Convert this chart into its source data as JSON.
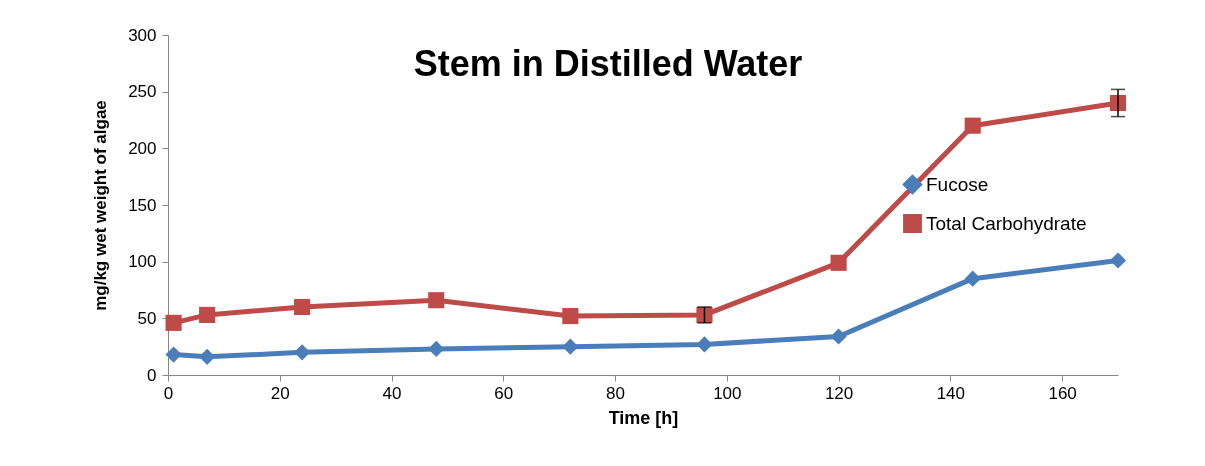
{
  "chart_data": {
    "type": "line",
    "title": "Stem in Distilled Water",
    "xlabel": "Time [h]",
    "ylabel": "mg/kg wet weight of algae",
    "x": [
      1,
      7,
      24,
      48,
      72,
      96,
      120,
      144,
      170
    ],
    "series": [
      {
        "name": "Fucose",
        "color": "#4a7ebb",
        "marker": "diamond",
        "values": [
          18,
          16,
          20,
          23,
          25,
          27,
          34,
          85,
          101
        ]
      },
      {
        "name": "Total Carbohydrate",
        "color": "#be4b48",
        "marker": "square",
        "values": [
          46,
          53,
          60,
          66,
          52,
          53,
          99,
          220,
          240
        ],
        "errors": [
          null,
          null,
          null,
          null,
          null,
          7,
          null,
          null,
          12
        ]
      }
    ],
    "xlim": [
      0,
      170
    ],
    "xticks": [
      0,
      20,
      40,
      60,
      80,
      100,
      120,
      140,
      160
    ],
    "ylim": [
      0,
      300
    ],
    "yticks": [
      0,
      50,
      100,
      150,
      200,
      250,
      300
    ],
    "grid": false,
    "legend": "right",
    "line_style": "solid"
  }
}
